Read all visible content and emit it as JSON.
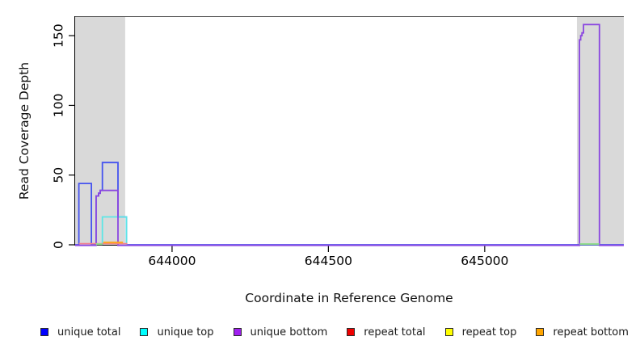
{
  "chart_data": {
    "type": "line",
    "variant": "step-coverage-plot",
    "title": "",
    "xlabel": "Coordinate in Reference Genome",
    "ylabel": "Read Coverage Depth",
    "xlim": [
      643690,
      645445
    ],
    "ylim": [
      0,
      164
    ],
    "x_ticks": [
      644000,
      644500,
      645000
    ],
    "y_ticks": [
      0,
      50,
      100,
      150
    ],
    "grid": false,
    "legend_position": "bottom",
    "plot_border": {
      "top_color": "#5a5a5a",
      "axis_color": "#000000"
    },
    "shaded_regions": [
      {
        "name": "left-repeat-region",
        "x0": 643690,
        "x1": 643850,
        "color": "#d9d9d9"
      },
      {
        "name": "right-repeat-region",
        "x0": 645295,
        "x1": 645445,
        "color": "#d9d9d9"
      }
    ],
    "series": [
      {
        "name": "unique total",
        "color": "#4553ef",
        "legend_color": "#0000ff",
        "width": 1.8,
        "points": [
          [
            643690,
            0
          ],
          [
            643702,
            0
          ],
          [
            643702,
            44
          ],
          [
            643742,
            44
          ],
          [
            643742,
            0
          ],
          [
            643757,
            0
          ],
          [
            643757,
            35
          ],
          [
            643765,
            35
          ],
          [
            643765,
            37
          ],
          [
            643770,
            37
          ],
          [
            643770,
            39
          ],
          [
            643777,
            39
          ],
          [
            643777,
            59
          ],
          [
            643827,
            59
          ],
          [
            643827,
            20
          ],
          [
            643854,
            20
          ],
          [
            643854,
            0
          ],
          [
            645445,
            0
          ]
        ]
      },
      {
        "name": "unique top",
        "color": "#5ce6e6",
        "legend_color": "#00ffff",
        "width": 1.8,
        "points": [
          [
            643777,
            0
          ],
          [
            643777,
            20
          ],
          [
            643854,
            20
          ],
          [
            643854,
            0
          ]
        ]
      },
      {
        "name": "unique bottom",
        "color": "#8a47e0",
        "legend_color": "#a020f0",
        "width": 1.8,
        "points": [
          [
            643690,
            -0.4
          ],
          [
            643757,
            -0.4
          ],
          [
            643757,
            35
          ],
          [
            643765,
            35
          ],
          [
            643765,
            37
          ],
          [
            643770,
            37
          ],
          [
            643770,
            39
          ],
          [
            643827,
            39
          ],
          [
            643827,
            -0.4
          ],
          [
            645303,
            -0.4
          ],
          [
            645303,
            147
          ],
          [
            645307,
            147
          ],
          [
            645307,
            150
          ],
          [
            645311,
            150
          ],
          [
            645311,
            152
          ],
          [
            645316,
            152
          ],
          [
            645316,
            158
          ],
          [
            645367,
            158
          ],
          [
            645367,
            -0.4
          ],
          [
            645445,
            -0.4
          ]
        ]
      },
      {
        "name": "repeat total",
        "color": "#f28090",
        "legend_color": "#ee0000",
        "width": 1.6,
        "points": [
          [
            643702,
            0.8
          ],
          [
            643857,
            0.8
          ]
        ]
      },
      {
        "name": "repeat top",
        "color": "#ffff00",
        "legend_color": "#ffff00",
        "width": 1.6,
        "points": []
      },
      {
        "name": "repeat bottom",
        "color": "#ffa51e",
        "legend_color": "#ffa500",
        "width": 2.2,
        "points": [
          [
            643780,
            1.6
          ],
          [
            643843,
            1.6
          ]
        ]
      }
    ],
    "overlap_segments": {
      "color": "#93dc8f",
      "depth": 0.5,
      "segments": [
        [
          643757,
          643777
        ],
        [
          645304,
          645366
        ]
      ]
    }
  }
}
